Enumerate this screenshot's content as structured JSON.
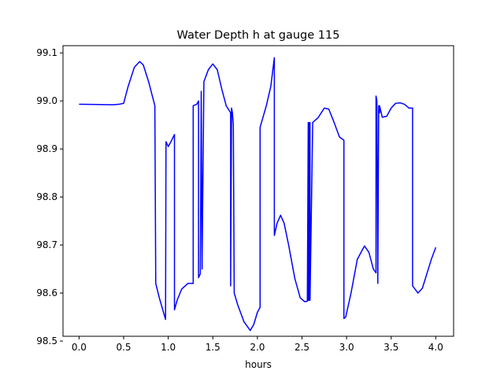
{
  "chart_data": {
    "type": "line",
    "title": "Water Depth h at gauge 115",
    "xlabel": "hours",
    "ylabel": "",
    "xlim": [
      -0.18,
      4.2
    ],
    "ylim": [
      98.51,
      99.115
    ],
    "xticks": [
      0.0,
      0.5,
      1.0,
      1.5,
      2.0,
      2.5,
      3.0,
      3.5,
      4.0
    ],
    "xtick_labels": [
      "0.0",
      "0.5",
      "1.0",
      "1.5",
      "2.0",
      "2.5",
      "3.0",
      "3.5",
      "4.0"
    ],
    "yticks": [
      98.5,
      98.6,
      98.7,
      98.8,
      98.9,
      99.0,
      99.1
    ],
    "ytick_labels": [
      "98.5",
      "98.6",
      "98.7",
      "98.8",
      "98.9",
      "99.0",
      "99.1"
    ],
    "grid": false,
    "legend": "none",
    "series": [
      {
        "color": "#0000ff",
        "x": [
          0.0,
          0.38,
          0.45,
          0.5,
          0.55,
          0.62,
          0.68,
          0.72,
          0.78,
          0.85,
          0.86,
          0.9,
          0.97,
          0.975,
          1.0,
          1.03,
          1.07,
          1.07,
          1.1,
          1.15,
          1.22,
          1.28,
          1.28,
          1.32,
          1.34,
          1.34,
          1.36,
          1.37,
          1.38,
          1.38,
          1.4,
          1.45,
          1.5,
          1.55,
          1.6,
          1.65,
          1.7,
          1.7,
          1.71,
          1.72,
          1.73,
          1.74,
          1.74,
          1.78,
          1.85,
          1.92,
          1.96,
          2.0,
          2.03,
          2.03,
          2.1,
          2.15,
          2.19,
          2.19,
          2.22,
          2.26,
          2.3,
          2.35,
          2.42,
          2.48,
          2.53,
          2.56,
          2.57,
          2.57,
          2.58,
          2.58,
          2.59,
          2.59,
          2.62,
          2.68,
          2.75,
          2.8,
          2.85,
          2.92,
          2.97,
          2.97,
          2.99,
          3.05,
          3.12,
          3.2,
          3.25,
          3.3,
          3.33,
          3.33,
          3.34,
          3.35,
          3.36,
          3.37,
          3.37,
          3.4,
          3.45,
          3.5,
          3.55,
          3.6,
          3.65,
          3.7,
          3.74,
          3.74,
          3.8,
          3.85,
          3.9,
          3.95,
          4.0
        ],
        "y": [
          98.993,
          98.992,
          98.993,
          98.995,
          99.03,
          99.07,
          99.082,
          99.075,
          99.04,
          98.99,
          98.62,
          98.59,
          98.545,
          98.915,
          98.905,
          98.915,
          98.93,
          98.565,
          98.585,
          98.608,
          98.62,
          98.62,
          98.99,
          98.993,
          99.0,
          98.632,
          98.64,
          99.02,
          98.65,
          98.67,
          99.04,
          99.065,
          99.077,
          99.065,
          99.025,
          98.99,
          98.975,
          98.615,
          98.985,
          98.975,
          98.95,
          98.6,
          98.6,
          98.575,
          98.54,
          98.522,
          98.535,
          98.56,
          98.57,
          98.945,
          98.99,
          99.03,
          99.09,
          98.72,
          98.745,
          98.762,
          98.745,
          98.7,
          98.63,
          98.59,
          98.582,
          98.583,
          98.955,
          98.585,
          98.585,
          98.955,
          98.955,
          98.585,
          98.955,
          98.965,
          98.985,
          98.983,
          98.96,
          98.925,
          98.918,
          98.547,
          98.55,
          98.6,
          98.67,
          98.698,
          98.685,
          98.65,
          98.642,
          99.01,
          99.0,
          98.62,
          98.99,
          98.975,
          98.99,
          98.966,
          98.968,
          98.985,
          98.995,
          98.996,
          98.993,
          98.985,
          98.985,
          98.615,
          98.6,
          98.61,
          98.64,
          98.67,
          98.695
        ]
      }
    ]
  }
}
